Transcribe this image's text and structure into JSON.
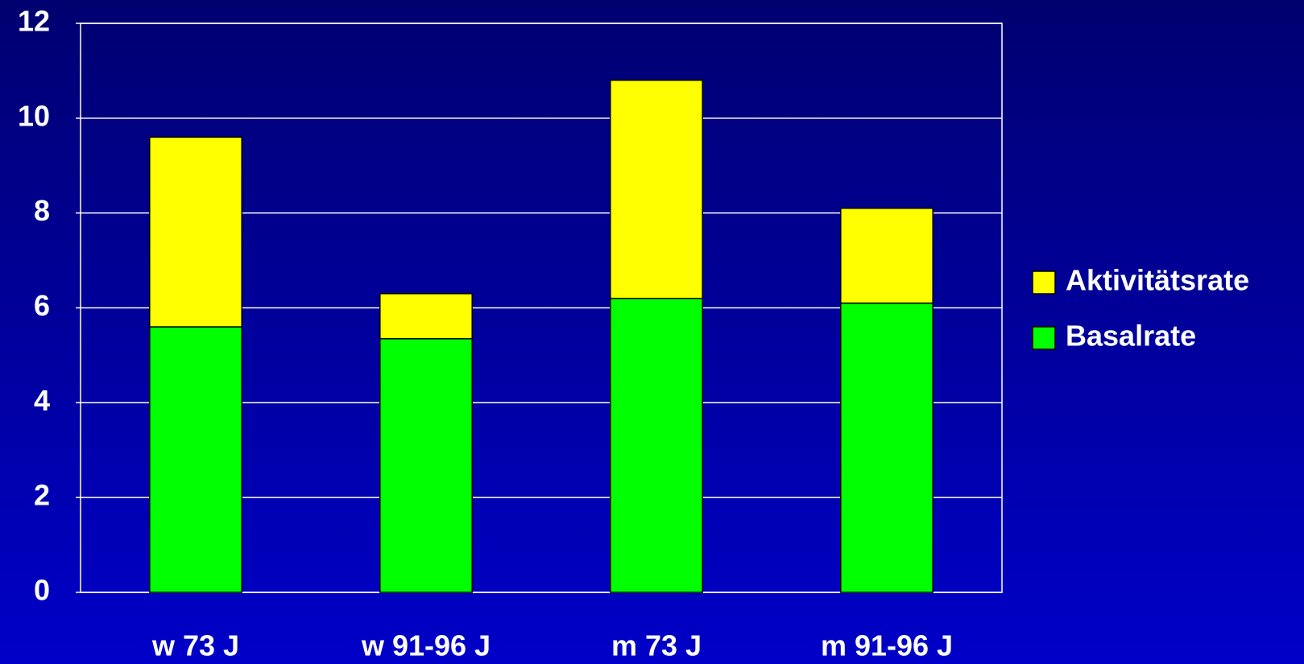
{
  "chart_data": {
    "type": "stacked_bar",
    "categories": [
      "w 73 J",
      "w 91-96 J",
      "m 73 J",
      "m 91-96 J"
    ],
    "series": [
      {
        "name": "Basalrate",
        "color": "#00ff00",
        "values": [
          5.6,
          5.35,
          6.2,
          6.1
        ]
      },
      {
        "name": "Aktivitätsrate",
        "color": "#ffff00",
        "values": [
          4.0,
          0.95,
          4.6,
          2.0
        ]
      }
    ],
    "ylim": [
      0,
      12
    ],
    "yticks": [
      0,
      2,
      4,
      6,
      8,
      10,
      12
    ],
    "grid": true,
    "legend": "right"
  }
}
